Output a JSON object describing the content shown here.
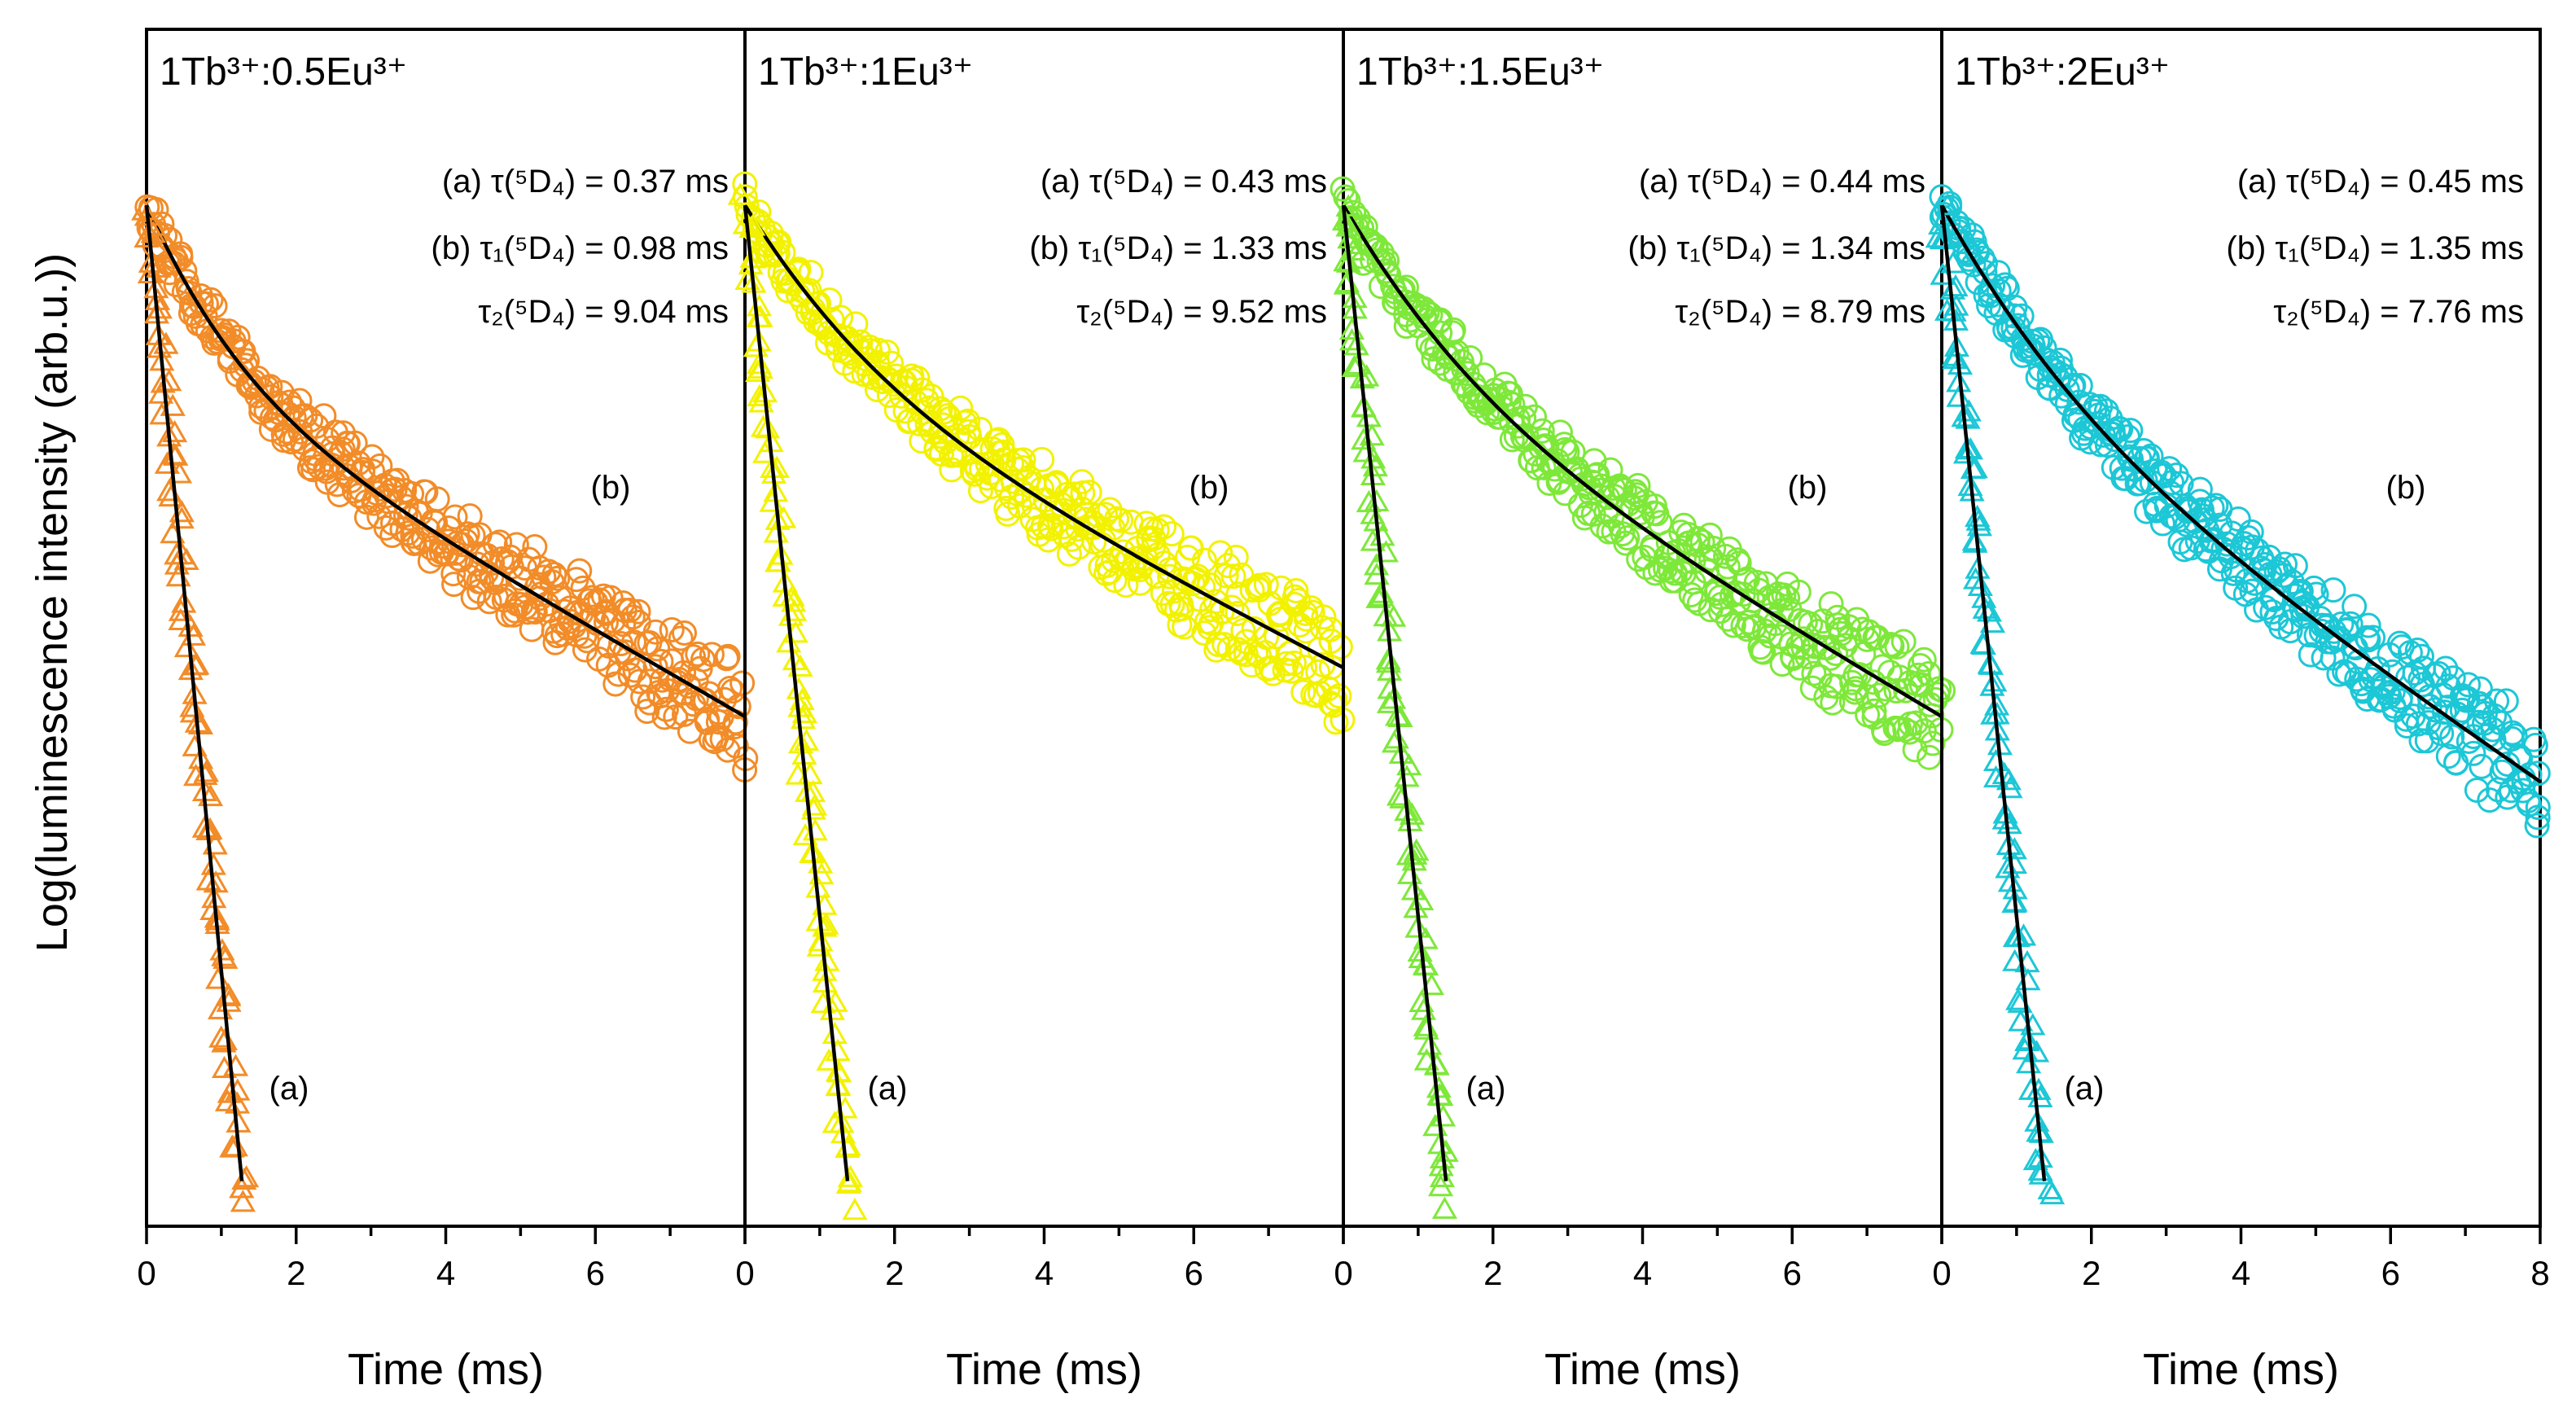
{
  "chart_data": {
    "type": "scatter",
    "y_axis_label": "Log(luminescence intensity (arb.u.))",
    "x_axis_label": "Time (ms)",
    "xlim": [
      0,
      8
    ],
    "x_ticks": [
      0,
      2,
      4,
      6,
      8
    ],
    "y_scale": "log (unlabelled)",
    "panels": [
      {
        "title": "1Tb³⁺:0.5Eu³⁺",
        "color": "#F28C28",
        "annotation_a": "(a) τ(⁵D₄) =  0.37 ms",
        "annotation_b1": "(b) τ₁(⁵D₄) = 0.98 ms",
        "annotation_b2": "τ₂(⁵D₄) = 9.04 ms",
        "label_a": "(a)",
        "label_b": "(b)",
        "x_tick_labels": [
          "0",
          "2",
          "4",
          "6",
          ""
        ],
        "series": [
          {
            "name": "(a)",
            "tau_ms": 0.37,
            "x_max_ms": 1.3
          },
          {
            "name": "(b)",
            "tau1_ms": 0.98,
            "tau2_ms": 9.04,
            "x_max_ms": 8
          }
        ]
      },
      {
        "title": "1Tb³⁺:1Eu³⁺",
        "color": "#F2F200",
        "annotation_a": "(a) τ(⁵D₄) =  0.43 ms",
        "annotation_b1": "(b) τ₁(⁵D₄) = 1.33 ms",
        "annotation_b2": "τ₂(⁵D₄) = 9.52 ms",
        "label_a": "(a)",
        "label_b": "(b)",
        "x_tick_labels": [
          "0",
          "2",
          "4",
          "6",
          ""
        ],
        "series": [
          {
            "name": "(a)",
            "tau_ms": 0.43,
            "x_max_ms": 1.4
          },
          {
            "name": "(b)",
            "tau1_ms": 1.33,
            "tau2_ms": 9.52,
            "x_max_ms": 8
          }
        ]
      },
      {
        "title": "1Tb³⁺:1.5Eu³⁺",
        "color": "#7EE83A",
        "annotation_a": "(a) τ(⁵D₄) =  0.44 ms",
        "annotation_b1": "(b) τ₁(⁵D₄) = 1.34 ms",
        "annotation_b2": "τ₂(⁵D₄) = 8.79 ms",
        "label_a": "(a)",
        "label_b": "(b)",
        "x_tick_labels": [
          "0",
          "2",
          "4",
          "6",
          ""
        ],
        "series": [
          {
            "name": "(a)",
            "tau_ms": 0.44,
            "x_max_ms": 1.4
          },
          {
            "name": "(b)",
            "tau1_ms": 1.34,
            "tau2_ms": 8.79,
            "x_max_ms": 8
          }
        ]
      },
      {
        "title": "1Tb³⁺:2Eu³⁺",
        "color": "#1CC7D6",
        "annotation_a": "(a) τ(⁵D₄) =  0.45 ms",
        "annotation_b1": "(b) τ₁(⁵D₄) = 1.35 ms",
        "annotation_b2": "τ₂(⁵D₄) = 7.76 ms",
        "label_a": "(a)",
        "label_b": "(b)",
        "x_tick_labels": [
          "0",
          "2",
          "4",
          "6",
          "8"
        ],
        "series": [
          {
            "name": "(a)",
            "tau_ms": 0.45,
            "x_max_ms": 1.4
          },
          {
            "name": "(b)",
            "tau1_ms": 1.35,
            "tau2_ms": 7.76,
            "x_max_ms": 8
          }
        ]
      }
    ]
  }
}
